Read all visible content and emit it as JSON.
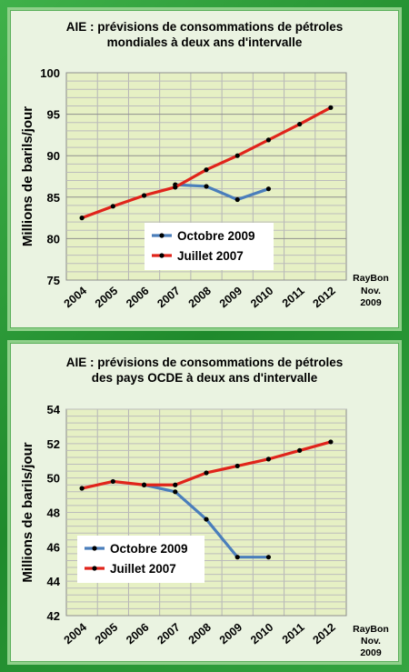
{
  "chart_data": [
    {
      "type": "line",
      "title_lines": [
        "AIE : prévisions de consommations de pétroles",
        "mondiales  à deux ans d'intervalle"
      ],
      "ylabel": "Millions de barils/jour",
      "xlabel": "",
      "categories": [
        "2004",
        "2005",
        "2006",
        "2007",
        "2008",
        "2009",
        "2010",
        "2011",
        "2012"
      ],
      "ylim": [
        75,
        100
      ],
      "yticks": [
        75,
        80,
        85,
        90,
        95,
        100
      ],
      "grid": true,
      "legend_placement": "center",
      "credit_lines": [
        "RayBon",
        "Nov.",
        "2009"
      ],
      "series": [
        {
          "name": "Octobre 2009",
          "color": "#4a7ebb",
          "points": [
            [
              2007,
              86.5
            ],
            [
              2008,
              86.3
            ],
            [
              2009,
              84.7
            ],
            [
              2010,
              86.0
            ]
          ]
        },
        {
          "name": "Juillet 2007",
          "color": "#e0241b",
          "points": [
            [
              2004,
              82.5
            ],
            [
              2005,
              83.9
            ],
            [
              2006,
              85.2
            ],
            [
              2007,
              86.2
            ],
            [
              2008,
              88.3
            ],
            [
              2009,
              90.0
            ],
            [
              2010,
              91.9
            ],
            [
              2011,
              93.8
            ],
            [
              2012,
              95.8
            ]
          ]
        }
      ]
    },
    {
      "type": "line",
      "title_lines": [
        "AIE : prévisions de consommations de pétroles",
        "des pays OCDE  à deux ans d'intervalle"
      ],
      "ylabel": "Millions de barils/jour",
      "xlabel": "",
      "categories": [
        "2004",
        "2005",
        "2006",
        "2007",
        "2008",
        "2009",
        "2010",
        "2011",
        "2012"
      ],
      "ylim": [
        42,
        54
      ],
      "yticks": [
        42,
        44,
        46,
        48,
        50,
        52,
        54
      ],
      "grid": true,
      "legend_placement": "bottom-left",
      "credit_lines": [
        "RayBon",
        "Nov.",
        "2009"
      ],
      "series": [
        {
          "name": "Octobre 2009",
          "color": "#4a7ebb",
          "points": [
            [
              2006,
              49.6
            ],
            [
              2007,
              49.2
            ],
            [
              2008,
              47.6
            ],
            [
              2009,
              45.4
            ],
            [
              2010,
              45.4
            ]
          ]
        },
        {
          "name": "Juillet 2007",
          "color": "#e0241b",
          "points": [
            [
              2004,
              49.4
            ],
            [
              2005,
              49.8
            ],
            [
              2006,
              49.6
            ],
            [
              2007,
              49.6
            ],
            [
              2008,
              50.3
            ],
            [
              2009,
              50.7
            ],
            [
              2010,
              51.1
            ],
            [
              2011,
              51.6
            ],
            [
              2012,
              52.1
            ]
          ]
        }
      ]
    }
  ]
}
